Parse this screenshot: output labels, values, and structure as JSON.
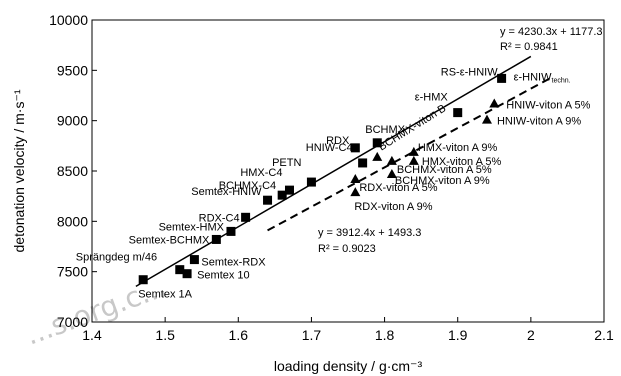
{
  "chart_data": {
    "type": "scatter",
    "title": "",
    "xlabel": "loading density / g·cm⁻³",
    "ylabel": "detonation velocity / m·s⁻¹",
    "xlim": [
      1.4,
      2.1
    ],
    "ylim": [
      7000,
      10000
    ],
    "x_ticks": [
      "1.4",
      "1.5",
      "1.6",
      "1.7",
      "1.8",
      "1.9",
      "2",
      "2.1"
    ],
    "y_ticks": [
      "7000",
      "7500",
      "8000",
      "8500",
      "9000",
      "9500",
      "10000"
    ],
    "grid": false,
    "series": [
      {
        "marker": "square",
        "fit": {
          "slope": 4230.3,
          "intercept": 1177.3,
          "equation": "y = 4230.3x + 1177.3",
          "r2": "R² = 0.9841",
          "line_style": "solid"
        },
        "points": [
          {
            "label": "Semtex 1A",
            "x": 1.47,
            "y": 7420
          },
          {
            "label": "Sprängdeg m/46",
            "x": 1.52,
            "y": 7520
          },
          {
            "label": "Semtex 10",
            "x": 1.53,
            "y": 7480
          },
          {
            "label": "Semtex-RDX",
            "x": 1.54,
            "y": 7620
          },
          {
            "label": "Semtex-BCHMX",
            "x": 1.57,
            "y": 7820
          },
          {
            "label": "Semtex-HMX",
            "x": 1.59,
            "y": 7900
          },
          {
            "label": "RDX-C4",
            "x": 1.61,
            "y": 8040
          },
          {
            "label": "Semtex-HNIW",
            "x": 1.64,
            "y": 8210
          },
          {
            "label": "BCHMX-C4",
            "x": 1.66,
            "y": 8260
          },
          {
            "label": "HMX-C4",
            "x": 1.67,
            "y": 8310
          },
          {
            "label": "PETN",
            "x": 1.7,
            "y": 8390
          },
          {
            "label": "HNIW-C4",
            "x": 1.77,
            "y": 8580
          },
          {
            "label": "RDX",
            "x": 1.76,
            "y": 8730
          },
          {
            "label": "BCHMX",
            "x": 1.79,
            "y": 8780
          },
          {
            "label": "ε-HMX",
            "x": 1.9,
            "y": 9080
          },
          {
            "label": "RS-ε-HNIW",
            "x": 1.96,
            "y": 9420
          }
        ]
      },
      {
        "marker": "triangle",
        "fit": {
          "slope": 3912.4,
          "intercept": 1493.3,
          "equation": "y = 3912.4x + 1493.3",
          "r2": "R² = 0.9023",
          "line_style": "dashed"
        },
        "points": [
          {
            "label": "RDX-viton A 9%",
            "x": 1.76,
            "y": 8290
          },
          {
            "label": "RDX-viton A 5%",
            "x": 1.76,
            "y": 8420
          },
          {
            "label": "BCHMX-viton A 9%",
            "x": 1.81,
            "y": 8470
          },
          {
            "label": "BCHMX-viton A 5%",
            "x": 1.81,
            "y": 8600
          },
          {
            "label": "BCHMX-viton B",
            "x": 1.79,
            "y": 8640
          },
          {
            "label": "HMX-viton A 9%",
            "x": 1.84,
            "y": 8690
          },
          {
            "label": "HMX-viton A 5%",
            "x": 1.84,
            "y": 8600
          },
          {
            "label": "HNIW-viton A 9%",
            "x": 1.94,
            "y": 9010
          },
          {
            "label": "HNIW-viton A 5%",
            "x": 1.95,
            "y": 9170
          }
        ]
      }
    ],
    "extra_annotations": [
      {
        "text": "ε-HNIW",
        "subscript": "techn.",
        "anchor_x": 1.96,
        "anchor_y": 9420
      }
    ]
  },
  "watermark": "...s.org.c..."
}
